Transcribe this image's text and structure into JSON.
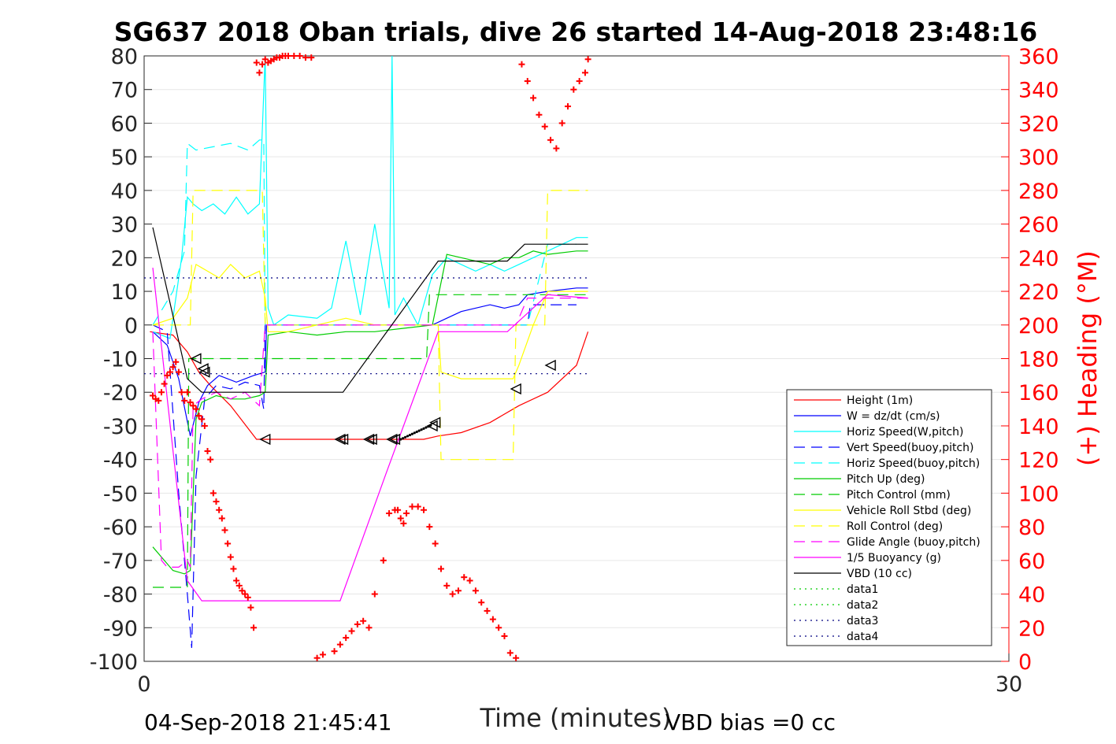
{
  "chart_data": {
    "type": "line",
    "title": "SG637 2018 Oban trials, dive 26 started 14-Aug-2018 23:48:16",
    "xlabel": "Time (minutes)",
    "ylabel_right": "(+) Heading (°M)",
    "xlim": [
      0,
      30
    ],
    "ylim_left": [
      -100,
      80
    ],
    "ylim_right": [
      0,
      360
    ],
    "xticks": [
      "0",
      "30"
    ],
    "yticks_left": [
      "80",
      "70",
      "60",
      "50",
      "40",
      "30",
      "20",
      "10",
      "0",
      "-10",
      "-20",
      "-30",
      "-40",
      "-50",
      "-60",
      "-70",
      "-80",
      "-90",
      "-100"
    ],
    "yticks_right": [
      "360",
      "340",
      "320",
      "300",
      "280",
      "260",
      "240",
      "220",
      "200",
      "180",
      "160",
      "140",
      "120",
      "100",
      "80",
      "60",
      "40",
      "20",
      "0"
    ],
    "grid": true,
    "legend_position": "lower-right",
    "footer_left": "04-Sep-2018 21:45:41",
    "footer_right": "VBD bias =0 cc",
    "series": [
      {
        "name": "Height (1m)",
        "color": "#ff0000",
        "style": "solid",
        "x": [
          0.2,
          1.0,
          1.5,
          1.9,
          2.3,
          3.0,
          3.9,
          4.2,
          6.8,
          9.0,
          9.7,
          10.2,
          11.0,
          12.0,
          13.0,
          14.0,
          15.0,
          15.4
        ],
        "y": [
          -2,
          -3,
          -8,
          -14,
          -18,
          -24,
          -34,
          -34,
          -34,
          -34,
          -34,
          -33,
          -32,
          -29,
          -24,
          -20,
          -12,
          -2
        ]
      },
      {
        "name": "W = dz/dt (cm/s)",
        "color": "#0000ff",
        "style": "solid",
        "x": [
          0.3,
          0.8,
          1.2,
          1.6,
          1.9,
          2.2,
          2.6,
          3.2,
          3.8,
          4.2,
          4.25,
          6.0,
          8.0,
          10.0,
          10.5,
          11.0,
          12.0,
          12.5,
          13.0,
          13.3,
          14.0,
          15.0,
          15.4
        ],
        "y": [
          -2,
          -6,
          -16,
          -33,
          -23,
          -18,
          -15,
          -17,
          -15,
          -14,
          0,
          0,
          0,
          0,
          2,
          4,
          6,
          5,
          6,
          9,
          10,
          11,
          11
        ]
      },
      {
        "name": "Horiz Speed(W,pitch)",
        "color": "#00ffff",
        "style": "solid",
        "x": [
          0.3,
          0.9,
          1.3,
          1.5,
          1.7,
          2.0,
          2.4,
          2.8,
          3.2,
          3.6,
          4.0,
          4.2,
          4.3,
          4.5,
          5.0,
          6.0,
          6.5,
          7.0,
          7.5,
          8.0,
          8.5,
          8.6,
          8.7,
          9.0,
          9.5,
          10.0,
          10.5,
          11.0,
          11.5,
          12.0,
          12.5,
          13.0,
          13.5,
          14.0,
          15.0,
          15.4
        ],
        "y": [
          -2,
          -4,
          20,
          38,
          36,
          34,
          36,
          33,
          38,
          33,
          36,
          80,
          5,
          0,
          3,
          2,
          5,
          25,
          3,
          30,
          5,
          80,
          3,
          8,
          0,
          15,
          20,
          18,
          16,
          18,
          16,
          18,
          20,
          22,
          26,
          26
        ]
      },
      {
        "name": "Vert Speed(buoy,pitch)",
        "color": "#0000ff",
        "style": "dashed",
        "x": [
          0.3,
          0.8,
          1.2,
          1.5,
          1.65,
          1.8,
          2.1,
          2.5,
          3.0,
          3.5,
          4.0,
          4.15,
          4.2,
          12.5,
          12.6,
          13.3,
          13.4,
          15.0
        ],
        "y": [
          0,
          -2,
          -50,
          -80,
          -96,
          -45,
          -22,
          -18,
          -19,
          -17,
          -18,
          -25,
          0,
          0,
          0,
          0,
          6,
          6
        ]
      },
      {
        "name": "Horiz Speed(buoy,pitch)",
        "color": "#00ffff",
        "style": "dashed",
        "x": [
          0.3,
          1.0,
          1.4,
          1.5,
          1.8,
          2.4,
          3.0,
          3.6,
          4.0,
          4.15,
          4.2,
          12.5,
          12.6,
          13.3,
          14.0,
          15.0
        ],
        "y": [
          0,
          10,
          22,
          54,
          52,
          53,
          54,
          52,
          55,
          55,
          0,
          0,
          0,
          0,
          24,
          24
        ]
      },
      {
        "name": "Pitch Up (deg)",
        "color": "#00cc00",
        "style": "solid",
        "x": [
          0.3,
          1.0,
          1.4,
          1.6,
          1.8,
          2.0,
          2.5,
          3.0,
          3.5,
          4.0,
          4.2,
          4.3,
          5.0,
          6.0,
          7.0,
          8.0,
          9.0,
          10.0,
          10.5,
          11.0,
          11.5,
          12.0,
          12.5,
          13.0,
          13.5,
          14.0,
          15.0,
          15.4
        ],
        "y": [
          -66,
          -73,
          -74,
          -73,
          -28,
          -23,
          -21,
          -22,
          -22,
          -21,
          -20,
          -3,
          -2,
          -3,
          -2,
          -2,
          -1,
          0,
          21,
          20,
          19,
          18,
          20,
          20,
          22,
          21,
          22,
          22
        ]
      },
      {
        "name": "Pitch Control (mm)",
        "color": "#00cc00",
        "style": "dashed",
        "x": [
          0.3,
          1.5,
          1.55,
          4.1,
          4.2,
          9.8,
          9.9,
          12.5,
          12.6,
          15.4
        ],
        "y": [
          -78,
          -78,
          -10,
          -10,
          -10,
          -10,
          9,
          9,
          9,
          9
        ]
      },
      {
        "name": "Vehicle Roll Stbd (deg)",
        "color": "#ffff00",
        "style": "solid",
        "x": [
          0.3,
          1.0,
          1.5,
          1.8,
          2.2,
          2.6,
          3.0,
          3.5,
          4.0,
          4.2,
          4.3,
          5.0,
          6.0,
          7.0,
          8.0,
          9.0,
          10.0,
          10.2,
          10.3,
          11.0,
          12.0,
          12.8,
          13.0,
          13.5,
          14.0,
          15.0,
          15.4
        ],
        "y": [
          0,
          2,
          8,
          18,
          16,
          14,
          18,
          14,
          16,
          8,
          -2,
          -2,
          0,
          2,
          0,
          0,
          0,
          0,
          -14,
          -16,
          -16,
          -16,
          -12,
          0,
          10,
          10,
          10
        ]
      },
      {
        "name": "Roll Control (deg)",
        "color": "#ffff00",
        "style": "dashed",
        "x": [
          0.3,
          1.6,
          1.7,
          4.1,
          4.2,
          10.2,
          10.3,
          12.8,
          12.9,
          13.9,
          14.0,
          15.4
        ],
        "y": [
          0,
          0,
          40,
          40,
          0,
          0,
          -40,
          -40,
          0,
          0,
          40,
          40
        ]
      },
      {
        "name": "Glide Angle (buoy,pitch)",
        "color": "#ff00ff",
        "style": "dashed",
        "x": [
          0.3,
          0.6,
          0.8,
          1.2,
          1.5,
          1.6,
          1.7,
          2.0,
          2.5,
          3.0,
          3.5,
          4.0,
          4.2,
          12.8,
          12.9,
          13.3,
          15.4
        ],
        "y": [
          -2,
          -70,
          -72,
          -72,
          -70,
          -72,
          -24,
          -22,
          -20,
          -22,
          -20,
          -24,
          0,
          0,
          0,
          8,
          8
        ]
      },
      {
        "name": "1/5 Buoyancy (g)",
        "color": "#ff00ff",
        "style": "solid",
        "x": [
          0.3,
          1.5,
          2.0,
          6.8,
          8.4,
          10.2,
          12.6,
          14.0,
          15.4
        ],
        "y": [
          17,
          -76,
          -82,
          -82,
          -44,
          -2,
          -2,
          9,
          8
        ]
      },
      {
        "name": "VBD (10 cc)",
        "color": "#000000",
        "style": "solid",
        "x": [
          0.3,
          1.5,
          2.0,
          6.9,
          10.2,
          12.6,
          13.2,
          15.4
        ],
        "y": [
          29,
          -16,
          -20,
          -20,
          19,
          19,
          24,
          24
        ]
      },
      {
        "name": "data1",
        "color": "#00cc00",
        "style": "dotted",
        "x": [],
        "y": []
      },
      {
        "name": "data2",
        "color": "#00cc00",
        "style": "dotted",
        "x": [],
        "y": []
      },
      {
        "name": "data3",
        "color": "#000080",
        "style": "dotted",
        "x": [
          0,
          15.4
        ],
        "y": [
          -14.5,
          -14.5
        ]
      },
      {
        "name": "data4",
        "color": "#000080",
        "style": "dotted",
        "x": [
          0,
          15.4
        ],
        "y": [
          14,
          14
        ]
      }
    ],
    "heading_series": {
      "marker": "+",
      "color": "#ff0000",
      "axis": "right",
      "x": [
        0.3,
        0.4,
        0.5,
        0.6,
        0.7,
        0.8,
        0.9,
        1.0,
        1.1,
        1.2,
        1.3,
        1.4,
        1.5,
        1.6,
        1.7,
        1.8,
        1.9,
        2.0,
        2.1,
        2.2,
        2.3,
        2.4,
        2.5,
        2.6,
        2.7,
        2.8,
        2.9,
        3.0,
        3.1,
        3.2,
        3.3,
        3.4,
        3.5,
        3.6,
        3.7,
        3.8,
        3.9,
        4.2,
        4.0,
        4.1,
        4.3,
        4.4,
        4.5,
        4.6,
        4.7,
        4.8,
        4.9,
        5.0,
        5.2,
        5.4,
        5.6,
        5.8,
        6.0,
        6.2,
        6.6,
        6.8,
        7.0,
        7.2,
        7.4,
        7.6,
        7.8,
        8.0,
        8.3,
        8.5,
        8.7,
        8.8,
        8.9,
        9.0,
        9.1,
        9.3,
        9.5,
        9.7,
        9.9,
        10.1,
        10.3,
        10.5,
        10.7,
        10.9,
        11.1,
        11.3,
        11.5,
        11.7,
        11.9,
        12.1,
        12.3,
        12.5,
        12.7,
        12.9,
        13.1,
        13.3,
        13.5,
        13.7,
        13.9,
        14.1,
        14.3,
        14.5,
        14.7,
        14.9,
        15.1,
        15.3,
        15.4
      ],
      "y": [
        158,
        156,
        155,
        160,
        165,
        170,
        172,
        175,
        178,
        172,
        160,
        155,
        160,
        154,
        152,
        150,
        146,
        144,
        140,
        125,
        120,
        100,
        95,
        90,
        85,
        78,
        70,
        62,
        55,
        48,
        45,
        42,
        40,
        38,
        32,
        20,
        356,
        358,
        350,
        355,
        356,
        357,
        358,
        359,
        359,
        360,
        360,
        361,
        360,
        360,
        359,
        359,
        2,
        4,
        6,
        10,
        14,
        18,
        22,
        24,
        20,
        40,
        60,
        88,
        90,
        90,
        85,
        82,
        88,
        92,
        92,
        90,
        80,
        70,
        55,
        45,
        40,
        42,
        50,
        48,
        42,
        35,
        30,
        25,
        20,
        15,
        5,
        2,
        355,
        345,
        335,
        325,
        318,
        310,
        305,
        320,
        330,
        340,
        345,
        350,
        358
      ]
    },
    "depth_markers": {
      "shape": "triangle",
      "color": "#000000",
      "x": [
        1.8,
        2.05,
        2.1,
        4.2,
        6.8,
        6.9,
        7.8,
        7.9,
        8.6,
        8.7,
        10.0,
        10.1,
        12.9,
        14.1
      ],
      "y": [
        -10,
        -13,
        -14,
        -34,
        -34,
        -34,
        -34,
        -34,
        -34,
        -34,
        -30,
        -29,
        -19,
        -12
      ]
    }
  }
}
